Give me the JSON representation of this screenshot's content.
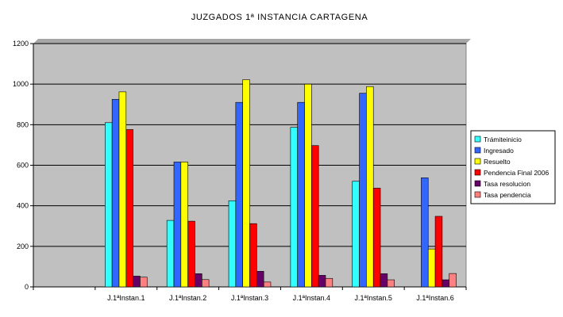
{
  "chart_data": {
    "type": "bar",
    "title": "JUZGADOS 1ª INSTANCIA CARTAGENA",
    "categories": [
      "",
      "J.1ªInstan.1",
      "J.1ªInstan.2",
      "J.1ªInstan.3",
      "J.1ªInstan.4",
      "J.1ªInstan.5",
      "J.1ªInstan.6"
    ],
    "ylim": [
      0,
      1200
    ],
    "yticks": [
      0,
      200,
      400,
      600,
      800,
      1000,
      1200
    ],
    "ytick_labels": [
      "0",
      "200",
      "400",
      "600",
      "800",
      "1000",
      "1200"
    ],
    "grid": true,
    "legend_position": "right",
    "plot_background": "#c0c0c0",
    "series": [
      {
        "name": "Trámiteinicio",
        "color": "#33ffff",
        "values": [
          null,
          810,
          328,
          425,
          787,
          521,
          null
        ]
      },
      {
        "name": "Ingresado",
        "color": "#3366ff",
        "values": [
          null,
          925,
          616,
          910,
          910,
          955,
          538
        ]
      },
      {
        "name": "Resuelto",
        "color": "#ffff00",
        "values": [
          null,
          962,
          616,
          1022,
          1000,
          988,
          187
        ]
      },
      {
        "name": "Pendencia Final 2006",
        "color": "#ff0000",
        "values": [
          null,
          776,
          324,
          312,
          697,
          487,
          348
        ]
      },
      {
        "name": "Tasa resolucion",
        "color": "#660066",
        "values": [
          null,
          53,
          65,
          77,
          57,
          65,
          35
        ]
      },
      {
        "name": "Tasa pendencia",
        "color": "#ff8080",
        "values": [
          null,
          48,
          36,
          24,
          42,
          35,
          66
        ]
      }
    ]
  }
}
